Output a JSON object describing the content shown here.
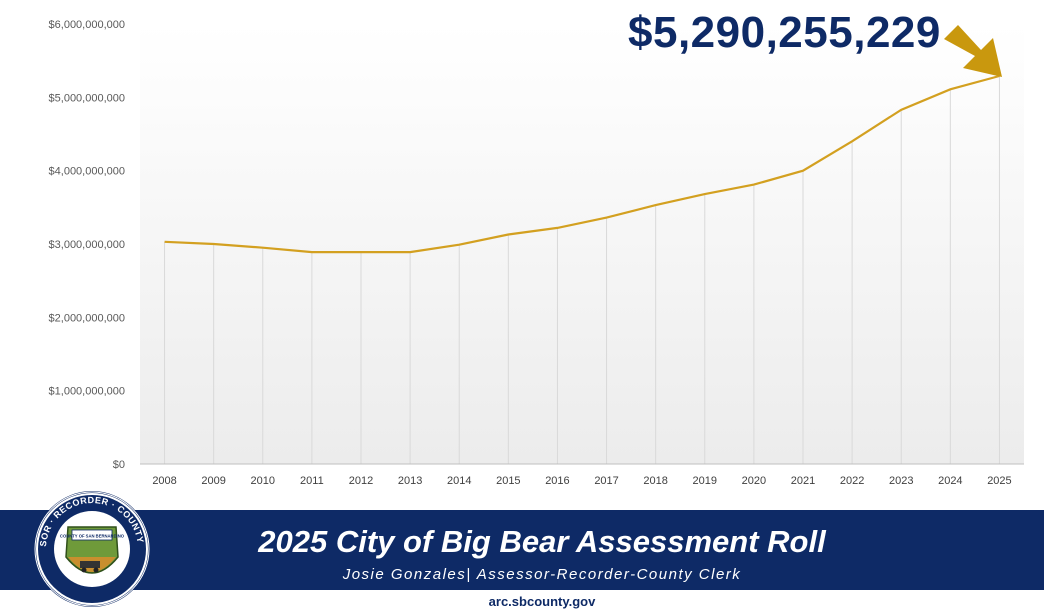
{
  "callout": {
    "text": "$5,290,255,229"
  },
  "banner": {
    "title": "2025 City of Big Bear Assessment Roll",
    "subtitle": "Josie Gonzales| Assessor-Recorder-County Clerk",
    "url": "arc.sbcounty.gov"
  },
  "seal": {
    "ring_text": "ASSESSOR · RECORDER · COUNTY CLERK",
    "inner_text": "COUNTY OF SAN BERNARDINO"
  },
  "colors": {
    "line": "#d3a020",
    "navy": "#0e2a66",
    "arrow": "#c9980e",
    "gridline": "#d9d9d9"
  },
  "chart_data": {
    "type": "line",
    "title": "",
    "xlabel": "",
    "ylabel": "",
    "ylim": [
      0,
      6000000000
    ],
    "y_ticks": [
      {
        "value": 0,
        "label": "$0"
      },
      {
        "value": 1000000000,
        "label": "$1,000,000,000"
      },
      {
        "value": 2000000000,
        "label": "$2,000,000,000"
      },
      {
        "value": 3000000000,
        "label": "$3,000,000,000"
      },
      {
        "value": 4000000000,
        "label": "$4,000,000,000"
      },
      {
        "value": 5000000000,
        "label": "$5,000,000,000"
      },
      {
        "value": 6000000000,
        "label": "$6,000,000,000"
      }
    ],
    "categories": [
      "2008",
      "2009",
      "2010",
      "2011",
      "2012",
      "2013",
      "2014",
      "2015",
      "2016",
      "2017",
      "2018",
      "2019",
      "2020",
      "2021",
      "2022",
      "2023",
      "2024",
      "2025"
    ],
    "series": [
      {
        "values": [
          3030000000,
          3000000000,
          2950000000,
          2890000000,
          2890000000,
          2890000000,
          2990000000,
          3130000000,
          3220000000,
          3360000000,
          3530000000,
          3680000000,
          3810000000,
          4000000000,
          4400000000,
          4830000000,
          5110000000,
          5290255229
        ]
      }
    ],
    "grid": {
      "vertical_drop_lines": true,
      "horizontal": false
    },
    "legend": "none"
  }
}
